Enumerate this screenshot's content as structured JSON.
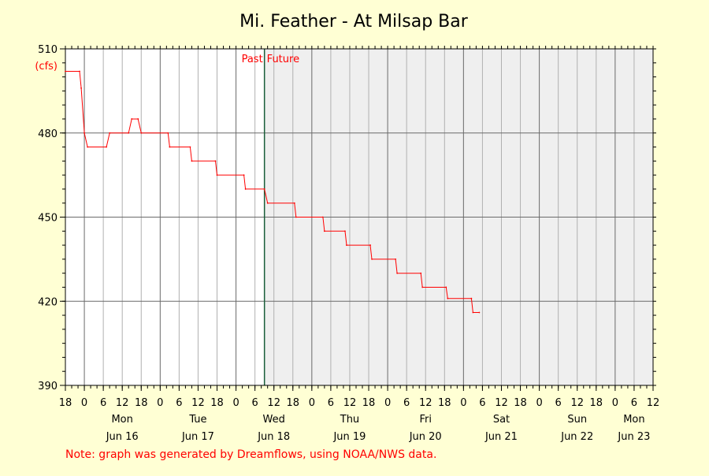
{
  "chart_data": {
    "type": "line",
    "title": "Mi. Feather - At Milsap Bar",
    "unit_label": "(cfs)",
    "ylim": [
      390,
      510
    ],
    "yticks": [
      390,
      420,
      450,
      480,
      510
    ],
    "x_range_hours": [
      -6,
      180
    ],
    "past_label": "Past",
    "future_label": "Future",
    "now_hour": 57,
    "hour_tick_labels": [
      {
        "h": -6,
        "label": "18"
      },
      {
        "h": 0,
        "label": "0"
      },
      {
        "h": 6,
        "label": "6"
      },
      {
        "h": 12,
        "label": "12"
      },
      {
        "h": 18,
        "label": "18"
      },
      {
        "h": 24,
        "label": "0"
      },
      {
        "h": 30,
        "label": "6"
      },
      {
        "h": 36,
        "label": "12"
      },
      {
        "h": 42,
        "label": "18"
      },
      {
        "h": 48,
        "label": "0"
      },
      {
        "h": 54,
        "label": "6"
      },
      {
        "h": 60,
        "label": "12"
      },
      {
        "h": 66,
        "label": "18"
      },
      {
        "h": 72,
        "label": "0"
      },
      {
        "h": 78,
        "label": "6"
      },
      {
        "h": 84,
        "label": "12"
      },
      {
        "h": 90,
        "label": "18"
      },
      {
        "h": 96,
        "label": "0"
      },
      {
        "h": 102,
        "label": "6"
      },
      {
        "h": 108,
        "label": "12"
      },
      {
        "h": 114,
        "label": "18"
      },
      {
        "h": 120,
        "label": "0"
      },
      {
        "h": 126,
        "label": "6"
      },
      {
        "h": 132,
        "label": "12"
      },
      {
        "h": 138,
        "label": "18"
      },
      {
        "h": 144,
        "label": "0"
      },
      {
        "h": 150,
        "label": "6"
      },
      {
        "h": 156,
        "label": "12"
      },
      {
        "h": 162,
        "label": "18"
      },
      {
        "h": 168,
        "label": "0"
      },
      {
        "h": 174,
        "label": "6"
      },
      {
        "h": 180,
        "label": "12"
      }
    ],
    "day_labels": [
      {
        "h": 12,
        "weekday": "Mon",
        "date": "Jun 16"
      },
      {
        "h": 36,
        "weekday": "Tue",
        "date": "Jun 17"
      },
      {
        "h": 60,
        "weekday": "Wed",
        "date": "Jun 18"
      },
      {
        "h": 84,
        "weekday": "Thu",
        "date": "Jun 19"
      },
      {
        "h": 108,
        "weekday": "Fri",
        "date": "Jun 20"
      },
      {
        "h": 132,
        "weekday": "Sat",
        "date": "Jun 21"
      },
      {
        "h": 156,
        "weekday": "Sun",
        "date": "Jun 22"
      },
      {
        "h": 174,
        "weekday": "Mon",
        "date": "Jun 23"
      }
    ],
    "series": [
      {
        "color": "#ff0000",
        "points": [
          [
            -6,
            502
          ],
          [
            -1.5,
            502
          ],
          [
            -1,
            496
          ],
          [
            0,
            480
          ],
          [
            1,
            475
          ],
          [
            7,
            475
          ],
          [
            8,
            480
          ],
          [
            14,
            480
          ],
          [
            15,
            485
          ],
          [
            17,
            485
          ],
          [
            18,
            480
          ],
          [
            26.5,
            480
          ],
          [
            27,
            475
          ],
          [
            33.5,
            475
          ],
          [
            34,
            470
          ],
          [
            41.5,
            470
          ],
          [
            42,
            465
          ],
          [
            50.5,
            465
          ],
          [
            51,
            460
          ],
          [
            57,
            460
          ],
          [
            58,
            455
          ],
          [
            66.5,
            455
          ],
          [
            67,
            450
          ],
          [
            75.5,
            450
          ],
          [
            76,
            445
          ],
          [
            82.5,
            445
          ],
          [
            83,
            440
          ],
          [
            90.5,
            440
          ],
          [
            91,
            435
          ],
          [
            98.5,
            435
          ],
          [
            99,
            430
          ],
          [
            106.5,
            430
          ],
          [
            107,
            425
          ],
          [
            114.5,
            425
          ],
          [
            115,
            421
          ],
          [
            122.5,
            421
          ],
          [
            123,
            416
          ],
          [
            125,
            416
          ]
        ]
      }
    ]
  },
  "footnote": "Note: graph was generated by Dreamflows, using NOAA/NWS data."
}
